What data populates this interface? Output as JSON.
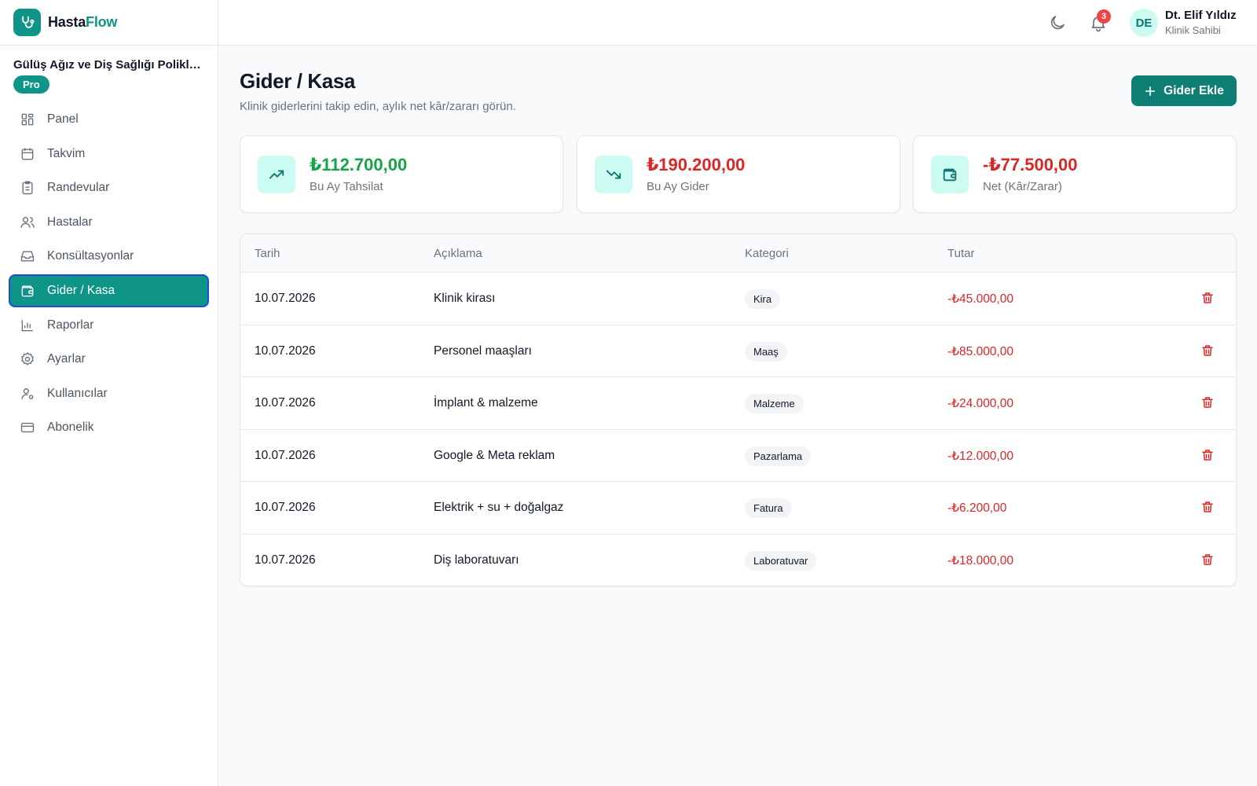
{
  "brand": {
    "name_part1": "Hasta",
    "name_part2": "Flow"
  },
  "clinic": {
    "name": "Gülüş Ağız ve Diş Sağlığı Polikli...",
    "plan": "Pro"
  },
  "nav": [
    {
      "label": "Panel",
      "icon": "grid-icon"
    },
    {
      "label": "Takvim",
      "icon": "calendar-icon"
    },
    {
      "label": "Randevular",
      "icon": "clipboard-icon"
    },
    {
      "label": "Hastalar",
      "icon": "users-icon"
    },
    {
      "label": "Konsültasyonlar",
      "icon": "inbox-icon"
    },
    {
      "label": "Gider / Kasa",
      "icon": "wallet-icon",
      "active": true
    },
    {
      "label": "Raporlar",
      "icon": "bar-chart-icon"
    },
    {
      "label": "Ayarlar",
      "icon": "gear-icon"
    },
    {
      "label": "Kullanıcılar",
      "icon": "user-cog-icon"
    },
    {
      "label": "Abonelik",
      "icon": "credit-card-icon"
    }
  ],
  "header": {
    "notifications_count": "3",
    "user": {
      "initials": "DE",
      "name": "Dt. Elif Yıldız",
      "role": "Klinik Sahibi"
    }
  },
  "page": {
    "title": "Gider / Kasa",
    "subtitle": "Klinik giderlerini takip edin, aylık net kâr/zararı görün.",
    "add_button": "Gider Ekle"
  },
  "stats": [
    {
      "value": "₺112.700,00",
      "label": "Bu Ay Tahsilat",
      "icon": "trending-up-icon",
      "color": "#16a34a"
    },
    {
      "value": "₺190.200,00",
      "label": "Bu Ay Gider",
      "icon": "trending-down-icon",
      "color": "#dc2626"
    },
    {
      "value": "-₺77.500,00",
      "label": "Net (Kâr/Zarar)",
      "icon": "wallet-icon",
      "color": "#dc2626"
    }
  ],
  "table": {
    "columns": [
      "Tarih",
      "Açıklama",
      "Kategori",
      "Tutar"
    ],
    "rows": [
      {
        "date": "10.07.2026",
        "description": "Klinik kirası",
        "category": "Kira",
        "amount": "-₺45.000,00"
      },
      {
        "date": "10.07.2026",
        "description": "Personel maaşları",
        "category": "Maaş",
        "amount": "-₺85.000,00"
      },
      {
        "date": "10.07.2026",
        "description": "İmplant & malzeme",
        "category": "Malzeme",
        "amount": "-₺24.000,00"
      },
      {
        "date": "10.07.2026",
        "description": "Google & Meta reklam",
        "category": "Pazarlama",
        "amount": "-₺12.000,00"
      },
      {
        "date": "10.07.2026",
        "description": "Elektrik + su + doğalgaz",
        "category": "Fatura",
        "amount": "-₺6.200,00"
      },
      {
        "date": "10.07.2026",
        "description": "Diş laboratuvarı",
        "category": "Laboratuvar",
        "amount": "-₺18.000,00"
      }
    ]
  },
  "colors": {
    "accent": "#0f9488",
    "accent_dark": "#0f7f74",
    "negative": "#dc2626",
    "positive": "#16a34a"
  }
}
